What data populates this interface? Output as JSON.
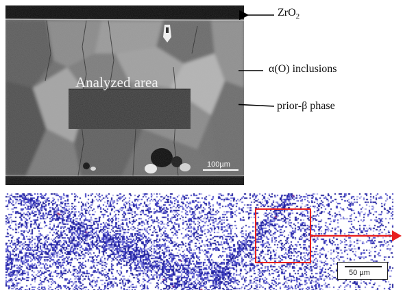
{
  "labels": {
    "zro2_base": "ZrO",
    "zro2_sub": "2",
    "alpha_inclusions": "α(O) inclusions",
    "prior_beta": "prior-β phase",
    "analyzed_area": "Analyzed  area"
  },
  "scale_bars": {
    "sem": "100µm",
    "map": "50 µm"
  },
  "colors": {
    "arrow": "#000000",
    "highlight_box": "#e8201e",
    "map_signal": "#2a2ab0"
  },
  "icons": {
    "arrow": "left-arrow-icon",
    "callout": "right-arrow-icon"
  }
}
